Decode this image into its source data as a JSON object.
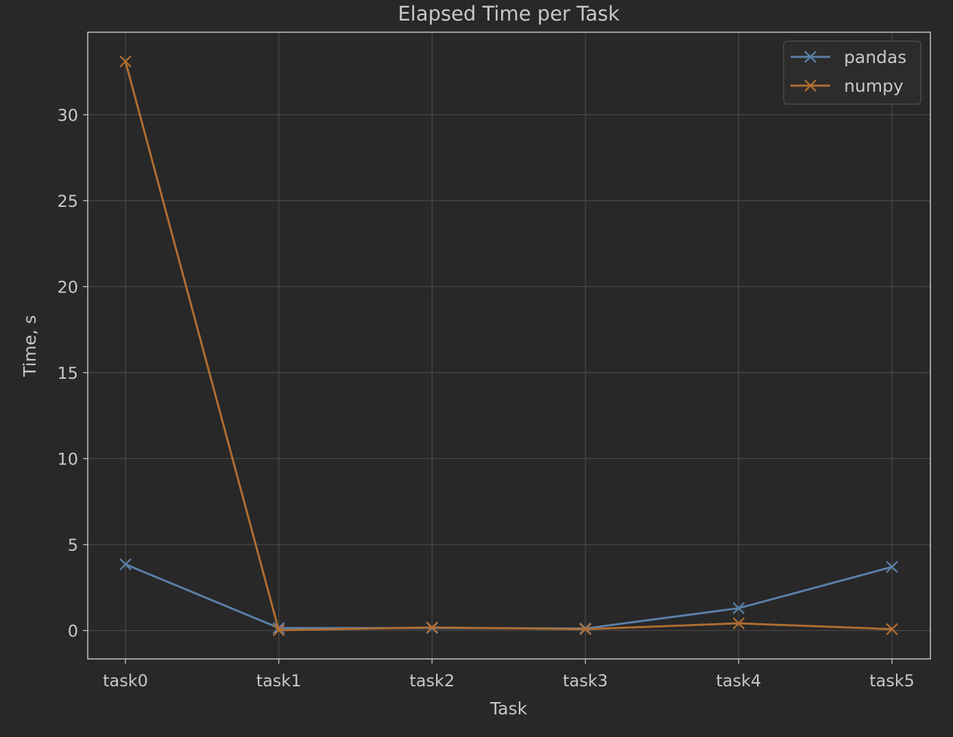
{
  "chart_data": {
    "type": "line",
    "title": "Elapsed Time per Task",
    "xlabel": "Task",
    "ylabel": "Time, s",
    "categories": [
      "task0",
      "task1",
      "task2",
      "task3",
      "task4",
      "task5"
    ],
    "ylim": [
      -1.65,
      34.8
    ],
    "yticks": [
      0,
      5,
      10,
      15,
      20,
      25,
      30
    ],
    "grid": true,
    "legend_position": "top-right",
    "series": [
      {
        "name": "pandas",
        "color": "#5b7fa8",
        "marker": "x",
        "values": [
          3.85,
          0.15,
          0.15,
          0.12,
          1.3,
          3.7
        ]
      },
      {
        "name": "numpy",
        "color": "#b06e32",
        "marker": "x",
        "values": [
          33.1,
          0.02,
          0.18,
          0.08,
          0.42,
          0.08
        ]
      }
    ]
  }
}
